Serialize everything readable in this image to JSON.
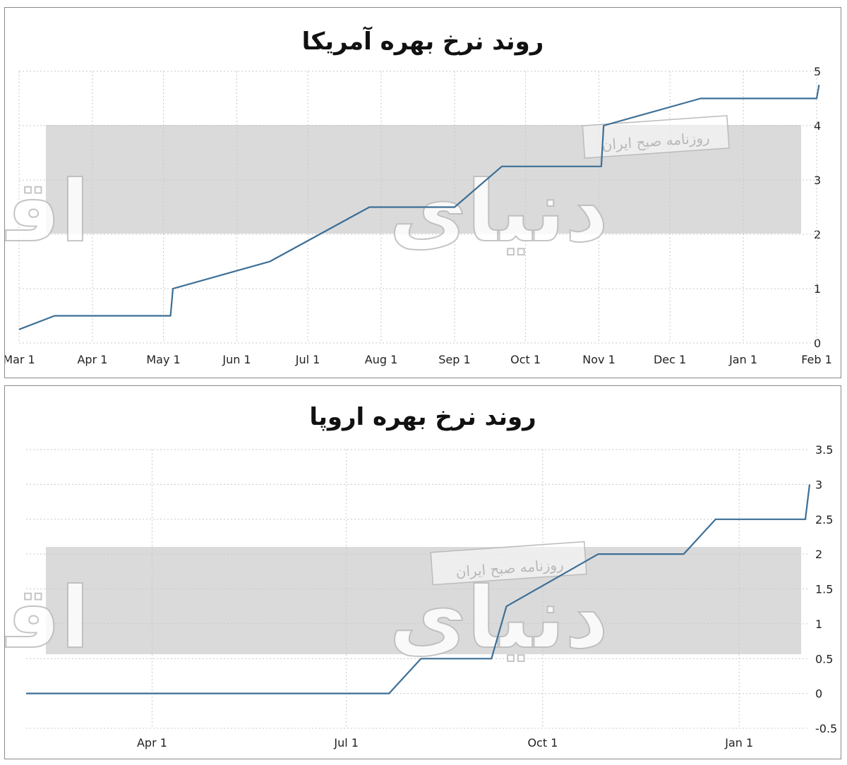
{
  "chart_data": [
    {
      "type": "line",
      "title": "روند نرخ بهره آمریکا",
      "x_tick_labels": [
        "Mar 1",
        "Apr 1",
        "May 1",
        "Jun 1",
        "Jul 1",
        "Aug 1",
        "Sep 1",
        "Oct 1",
        "Nov 1",
        "Dec 1",
        "Jan 1",
        "Feb 1"
      ],
      "y_tick_labels": [
        "0",
        "1",
        "2",
        "3",
        "4",
        "5"
      ],
      "ylim": [
        0,
        5
      ],
      "y_axis_side": "right",
      "grid": true,
      "series": [
        {
          "color": "#3d6f96",
          "x": [
            "2022-03-01",
            "2022-03-16",
            "2022-05-04",
            "2022-05-05",
            "2022-06-15",
            "2022-07-27",
            "2022-09-01",
            "2022-09-21",
            "2022-11-02",
            "2022-11-03",
            "2022-12-14",
            "2023-02-01",
            "2023-02-02"
          ],
          "y": [
            0.25,
            0.5,
            0.5,
            1.0,
            1.5,
            2.5,
            2.5,
            3.25,
            3.25,
            4.0,
            4.5,
            4.5,
            4.75
          ]
        }
      ]
    },
    {
      "type": "line",
      "title": "روند نرخ بهره اروپا",
      "x_tick_labels": [
        "Apr 1",
        "Jul 1",
        "Oct 1",
        "Jan 1"
      ],
      "y_tick_labels": [
        "-0.5",
        "0",
        "0.5",
        "1",
        "1.5",
        "2",
        "2.5",
        "3",
        "3.5"
      ],
      "ylim": [
        -0.5,
        3.5
      ],
      "y_axis_side": "right",
      "grid": true,
      "series": [
        {
          "color": "#3d6f96",
          "x": [
            "2022-02-01",
            "2022-07-21",
            "2022-08-05",
            "2022-09-07",
            "2022-09-14",
            "2022-10-27",
            "2022-12-06",
            "2022-12-21",
            "2023-02-01",
            "2023-02-03"
          ],
          "y": [
            0.0,
            0.0,
            0.5,
            0.5,
            1.25,
            2.0,
            2.0,
            2.5,
            2.5,
            3.0
          ]
        }
      ]
    }
  ],
  "watermark": {
    "brand": "دنیای اقتصاد",
    "subbrand": "روزنامه صبح ایران"
  }
}
